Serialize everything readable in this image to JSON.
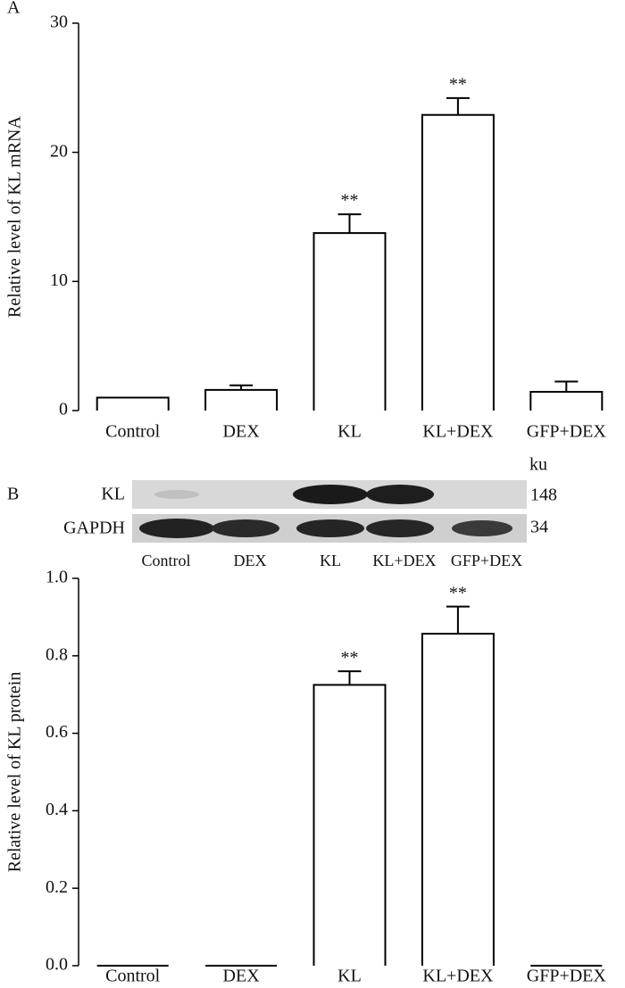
{
  "chart_data": [
    {
      "type": "bar",
      "panel": "A",
      "ylabel": "Relative level of KL mRNA",
      "categories": [
        "Control",
        "DEX",
        "KL",
        "KL+DEX",
        "GFP+DEX"
      ],
      "values": [
        1.0,
        1.6,
        13.75,
        22.9,
        1.45
      ],
      "errors": [
        0,
        0.35,
        1.45,
        1.3,
        0.8
      ],
      "significance": [
        null,
        null,
        "**",
        "**",
        null
      ],
      "ylim": [
        0,
        30
      ],
      "yticks": [
        0,
        10,
        20,
        30
      ],
      "color": "#ffffff"
    },
    {
      "type": "bar",
      "panel": "B",
      "ylabel": "Relative level of KL protein",
      "categories": [
        "Control",
        "DEX",
        "KL",
        "KL+DEX",
        "GFP+DEX"
      ],
      "values": [
        0,
        0,
        0.725,
        0.857,
        0
      ],
      "errors": [
        0,
        0,
        0.035,
        0.07,
        0
      ],
      "significance": [
        null,
        null,
        "**",
        "**",
        null
      ],
      "ylim": [
        0,
        1.0
      ],
      "yticks": [
        {
          "value": 0,
          "label": "0.0"
        },
        0.2,
        0.4,
        0.6,
        0.8,
        {
          "value": 1.0,
          "label": "1.0"
        }
      ],
      "color": "#ffffff"
    }
  ],
  "blot": {
    "unit": "ku",
    "rows": [
      "KL",
      "GAPDH"
    ],
    "sizes": [
      "148",
      "34"
    ],
    "lanes": [
      "Control",
      "DEX",
      "KL",
      "KL+DEX",
      "GFP+DEX"
    ]
  }
}
